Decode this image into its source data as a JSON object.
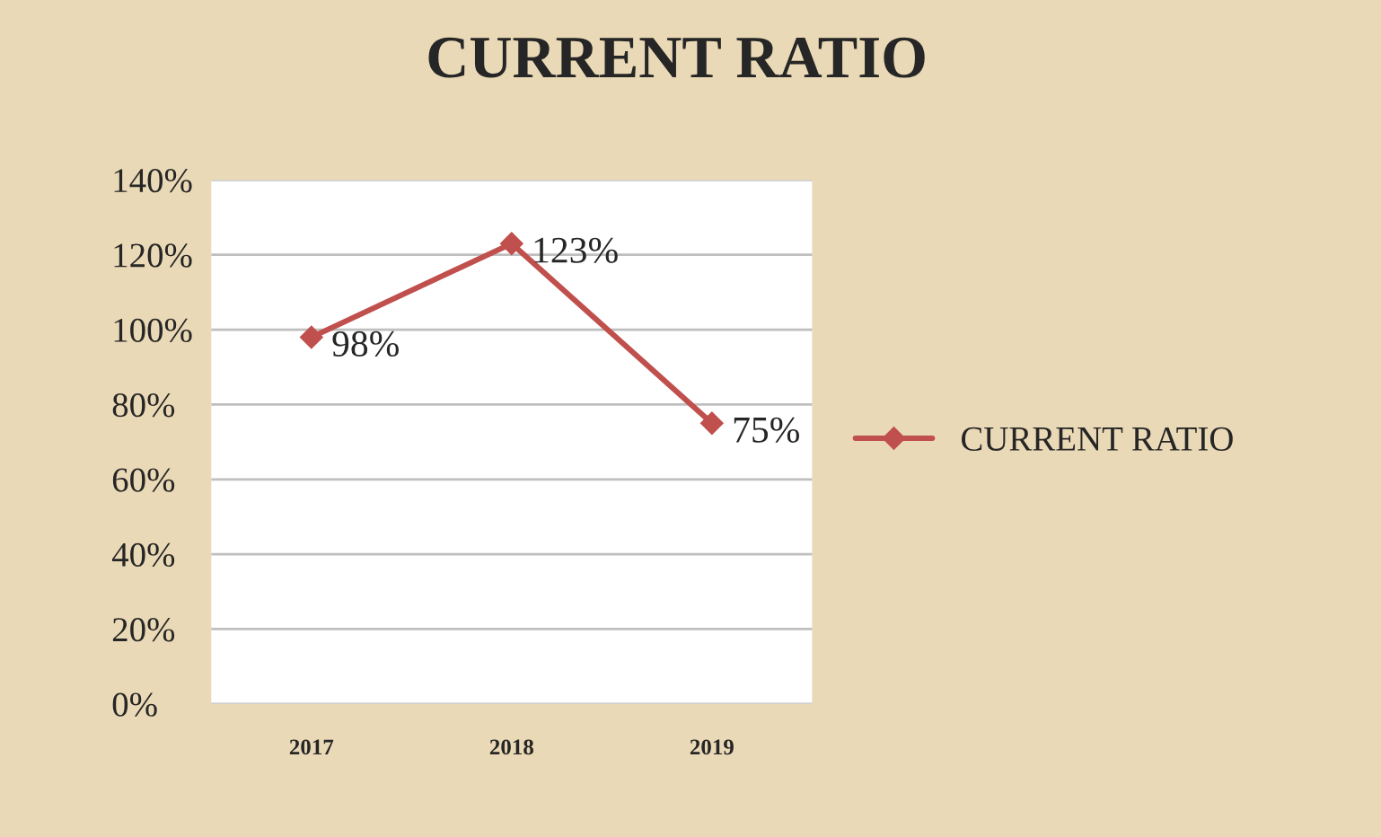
{
  "chart_data": {
    "type": "line",
    "title": "CURRENT RATIO",
    "categories": [
      "2017",
      "2018",
      "2019"
    ],
    "series": [
      {
        "name": "CURRENT RATIO",
        "color": "#c0504d",
        "values": [
          98,
          123,
          75
        ],
        "value_labels": [
          "98%",
          "123%",
          "75%"
        ]
      }
    ],
    "ylim": [
      0,
      140
    ],
    "yticks": [
      {
        "value": 0,
        "label": "0%"
      },
      {
        "value": 20,
        "label": "20%"
      },
      {
        "value": 40,
        "label": "40%"
      },
      {
        "value": 60,
        "label": "60%"
      },
      {
        "value": 80,
        "label": "80%"
      },
      {
        "value": 100,
        "label": "100%"
      },
      {
        "value": 120,
        "label": "120%"
      },
      {
        "value": 140,
        "label": "140%"
      }
    ],
    "grid": "y",
    "legend": "right",
    "marker": "diamond",
    "line_style": "solid"
  }
}
